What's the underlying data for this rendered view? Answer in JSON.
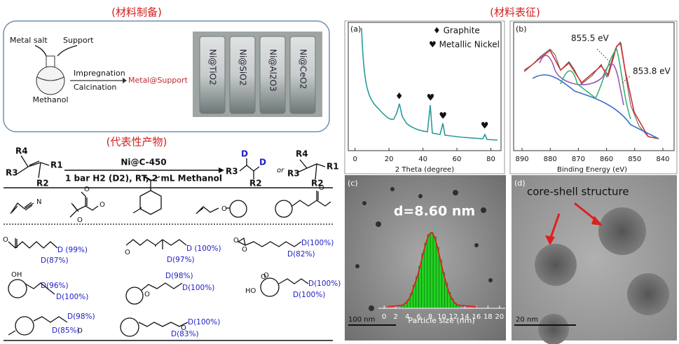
{
  "sections": {
    "prep": "(材料制备)",
    "products": "(代表性产物)",
    "characterization": "(材料表征)"
  },
  "prep": {
    "metal_salt": "Metal salt",
    "support": "Support",
    "solvent": "Methanol",
    "step1": "Impregnation",
    "step2": "Calcination",
    "product": "Metal@Support",
    "vials": [
      "Ni@TiO2",
      "Ni@SiO2",
      "Ni@Al2O3",
      "Ni@CeO2"
    ]
  },
  "reaction": {
    "catalyst": "Ni@C-450",
    "conditions": "1 bar H2 (D2), RT, 2 mL Methanol",
    "or": "or",
    "substrate_groups": [
      "R4",
      "R1",
      "R3",
      "R2"
    ],
    "product1_groups": [
      "R3",
      "D",
      "D",
      "R2"
    ],
    "product2_groups": [
      "R4",
      "R1",
      "R3",
      "R2"
    ]
  },
  "substrate_atoms": [
    "N",
    "O",
    "O",
    "O",
    "O",
    "O"
  ],
  "products": {
    "labels": [
      "D (99%)",
      "D(87%)",
      "D (100%)",
      "D(97%)",
      "D(100%)",
      "D(82%)",
      "D(96%)",
      "D(100%)",
      "D(98%)",
      "D(100%)",
      "D(100%)",
      "D(100%)",
      "D(98%)",
      "D(85%)",
      "D(100%)",
      "D(83%)"
    ],
    "atoms": [
      "O",
      "O",
      "O",
      "O",
      "O",
      "OH",
      "O",
      "O",
      "HO",
      "O",
      "O"
    ]
  },
  "xrd": {
    "panel": "(a)",
    "xlabel": "2 Theta (degree)",
    "legend": [
      "♦ Graphite",
      "♥ Metallic Nickel"
    ],
    "xlim": [
      -4,
      86
    ],
    "xticks": [
      0,
      20,
      40,
      60,
      80
    ],
    "peaks": [
      {
        "x": 26,
        "symbol": "♦"
      },
      {
        "x": 44.5,
        "symbol": "♥"
      },
      {
        "x": 51.8,
        "symbol": "♥"
      },
      {
        "x": 76.4,
        "symbol": "♥"
      }
    ]
  },
  "xps": {
    "panel": "(b)",
    "xlabel": "Binding Energy (eV)",
    "xlim": [
      893,
      836
    ],
    "xticks": [
      890,
      880,
      870,
      860,
      850,
      840
    ],
    "annotations": [
      "855.5 eV",
      "853.8 eV"
    ]
  },
  "tem_c": {
    "panel": "(c)",
    "diameter": "d=8.60 nm",
    "xlabel": "Particle size (nm)",
    "xlim": [
      -1,
      21
    ],
    "xticks": [
      0,
      2,
      4,
      6,
      8,
      10,
      12,
      14,
      16,
      18,
      20
    ],
    "bins": [
      3,
      3.5,
      4,
      4.5,
      5,
      5.5,
      6,
      6.5,
      7,
      7.5,
      8,
      8.5,
      9,
      9.5,
      10,
      10.5,
      11,
      11.5,
      12,
      12.5,
      13
    ],
    "counts": [
      3,
      5,
      8,
      14,
      22,
      30,
      40,
      52,
      62,
      70,
      72,
      68,
      58,
      46,
      34,
      24,
      15,
      9,
      5,
      3
    ],
    "ylim": [
      0,
      80
    ],
    "scale": "100 nm"
  },
  "tem_d": {
    "panel": "(d)",
    "label": "core-shell structure",
    "scale": "20 nm"
  }
}
